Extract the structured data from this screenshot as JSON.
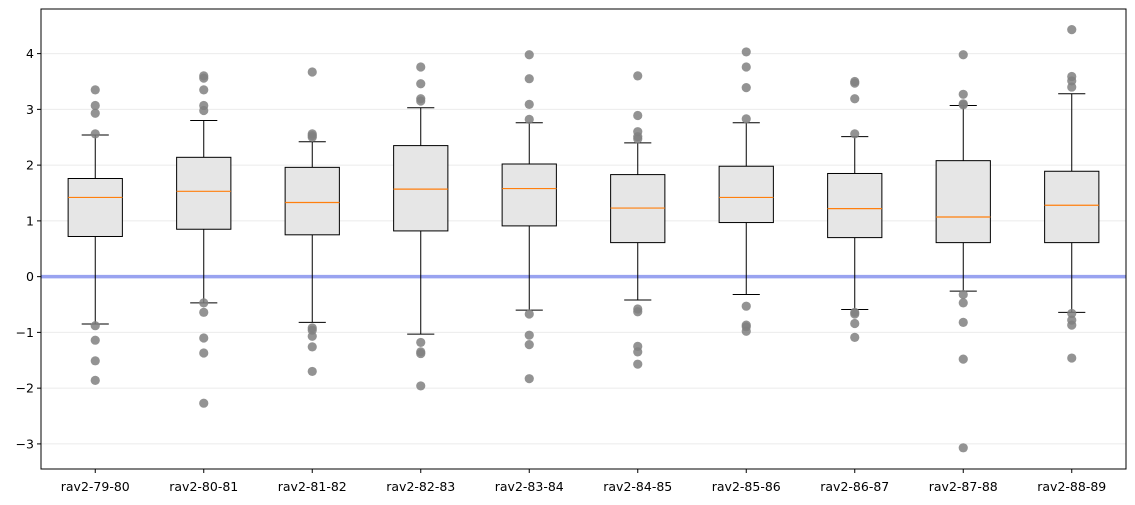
{
  "chart_data": {
    "type": "box",
    "title": "",
    "xlabel": "",
    "ylabel": "",
    "ylim": [
      -3.45,
      4.8
    ],
    "yticks": [
      -3,
      -2,
      -1,
      0,
      1,
      2,
      3,
      4
    ],
    "ytick_labels": [
      "−3",
      "−2",
      "−1",
      "0",
      "1",
      "2",
      "3",
      "4"
    ],
    "grid": "horizontal",
    "reference_line": {
      "y": 0,
      "color": "#99a3f0"
    },
    "colors": {
      "box_fill": "#e6e6e6",
      "median": "#ff7f0e",
      "outlier": "#808080",
      "line": "#000000"
    },
    "categories": [
      "rav2-79-80",
      "rav2-80-81",
      "rav2-81-82",
      "rav2-82-83",
      "rav2-83-84",
      "rav2-84-85",
      "rav2-85-86",
      "rav2-86-87",
      "rav2-87-88",
      "rav2-88-89"
    ],
    "boxes": [
      {
        "whislo": -0.85,
        "q1": 0.72,
        "med": 1.42,
        "q3": 1.76,
        "whishi": 2.54,
        "fliers": [
          3.35,
          3.07,
          2.93,
          2.56,
          -0.88,
          -1.14,
          -1.51,
          -1.86
        ]
      },
      {
        "whislo": -0.47,
        "q1": 0.85,
        "med": 1.53,
        "q3": 2.14,
        "whishi": 2.8,
        "fliers": [
          3.6,
          3.56,
          3.35,
          3.07,
          2.98,
          -0.47,
          -0.64,
          -1.1,
          -1.37,
          -2.27
        ]
      },
      {
        "whislo": -0.82,
        "q1": 0.75,
        "med": 1.33,
        "q3": 1.96,
        "whishi": 2.42,
        "fliers": [
          3.67,
          2.56,
          2.53,
          2.5,
          -0.92,
          -0.96,
          -1.07,
          -1.26,
          -1.7
        ]
      },
      {
        "whislo": -1.03,
        "q1": 0.82,
        "med": 1.57,
        "q3": 2.35,
        "whishi": 3.03,
        "fliers": [
          3.76,
          3.46,
          3.19,
          3.15,
          -1.18,
          -1.35,
          -1.38,
          -1.96
        ]
      },
      {
        "whislo": -0.6,
        "q1": 0.91,
        "med": 1.58,
        "q3": 2.02,
        "whishi": 2.76,
        "fliers": [
          3.98,
          3.55,
          3.09,
          2.82,
          -0.67,
          -1.05,
          -1.22,
          -1.83
        ]
      },
      {
        "whislo": -0.42,
        "q1": 0.61,
        "med": 1.23,
        "q3": 1.83,
        "whishi": 2.4,
        "fliers": [
          3.6,
          2.89,
          2.6,
          2.51,
          2.47,
          -0.58,
          -0.63,
          -1.25,
          -1.35,
          -1.57
        ]
      },
      {
        "whislo": -0.32,
        "q1": 0.97,
        "med": 1.42,
        "q3": 1.98,
        "whishi": 2.76,
        "fliers": [
          4.03,
          3.76,
          3.39,
          2.83,
          -0.53,
          -0.87,
          -0.9,
          -0.98
        ]
      },
      {
        "whislo": -0.59,
        "q1": 0.7,
        "med": 1.22,
        "q3": 1.85,
        "whishi": 2.51,
        "fliers": [
          3.5,
          3.47,
          3.19,
          2.56,
          -0.64,
          -0.67,
          -0.84,
          -1.09
        ]
      },
      {
        "whislo": -0.26,
        "q1": 0.61,
        "med": 1.07,
        "q3": 2.08,
        "whishi": 3.07,
        "fliers": [
          3.98,
          3.27,
          3.1,
          3.08,
          -0.32,
          -0.47,
          -0.82,
          -1.48,
          -3.07
        ]
      },
      {
        "whislo": -0.64,
        "q1": 0.61,
        "med": 1.28,
        "q3": 1.89,
        "whishi": 3.28,
        "fliers": [
          4.43,
          3.59,
          3.51,
          3.4,
          -0.66,
          -0.78,
          -0.87,
          -1.46
        ]
      }
    ]
  }
}
